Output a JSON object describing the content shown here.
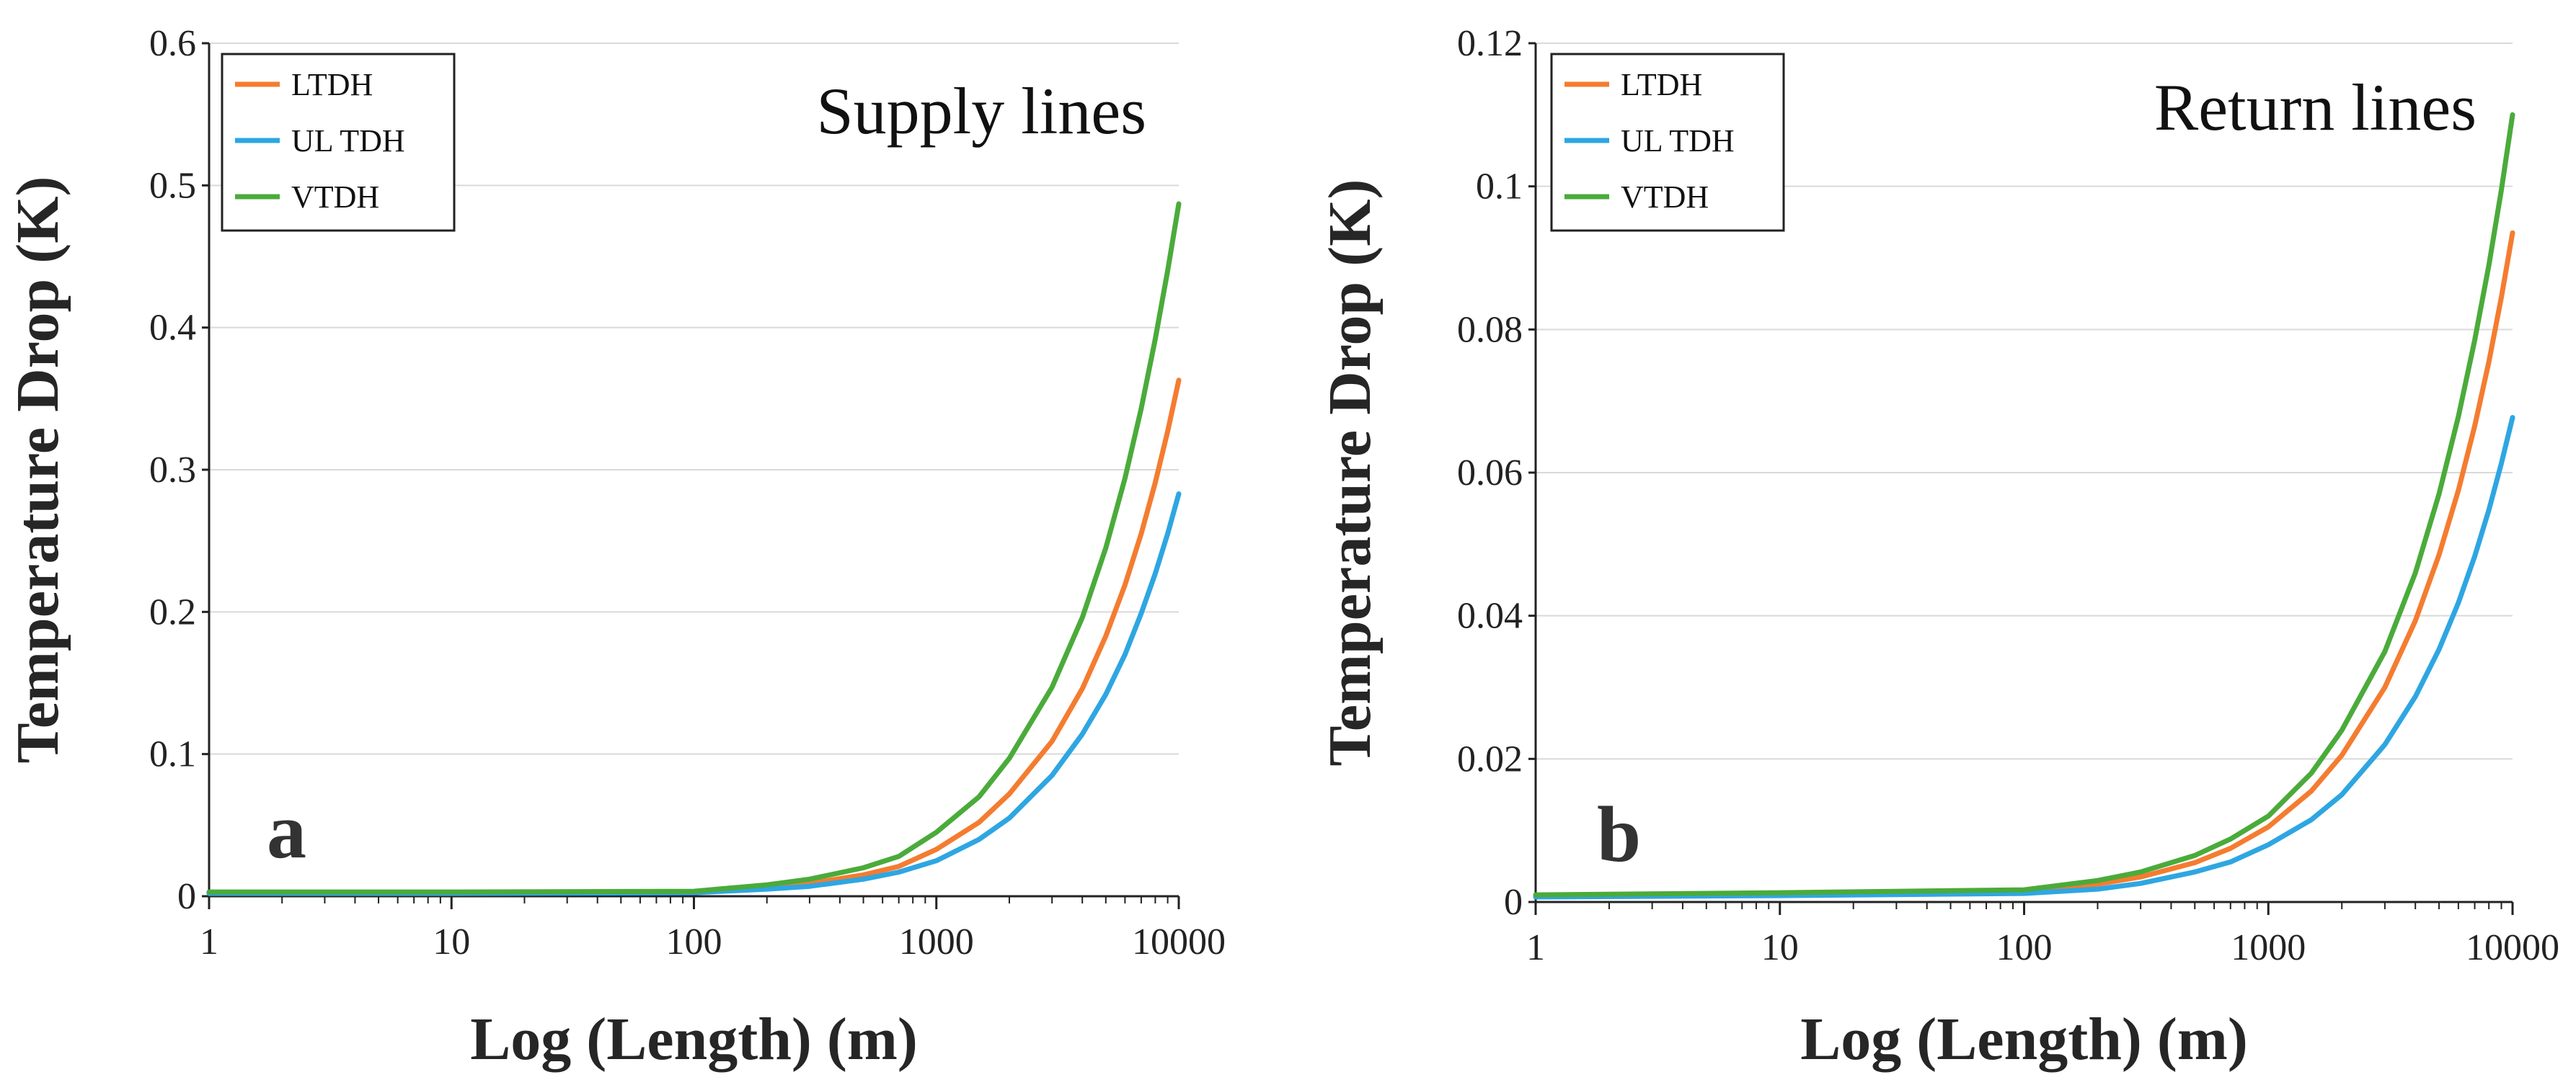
{
  "chart_data": [
    {
      "type": "line",
      "panel_label": "a",
      "title": "Supply lines",
      "xlabel": "Log (Length) (m)",
      "ylabel": "Temperature Drop (K)",
      "xscale": "log",
      "xlim": [
        1,
        10000
      ],
      "xticks": [
        1,
        10,
        100,
        1000,
        10000
      ],
      "xtick_labels": [
        "1",
        "10",
        "100",
        "1000",
        "10000"
      ],
      "ylim": [
        0,
        0.6
      ],
      "yticks": [
        0,
        0.1,
        0.2,
        0.3,
        0.4,
        0.5,
        0.6
      ],
      "ytick_labels": [
        "0",
        "0.1",
        "0.2",
        "0.3",
        "0.4",
        "0.5",
        "0.6"
      ],
      "grid": "horizontal",
      "legend_position": "top-left",
      "x": [
        1,
        10,
        100,
        200,
        300,
        500,
        700,
        1000,
        1500,
        2000,
        3000,
        4000,
        5000,
        6000,
        7000,
        8000,
        9000,
        10000
      ],
      "series": [
        {
          "name": "LTDH",
          "color": "#f47c30",
          "values": [
            0.0025,
            0.0025,
            0.003,
            0.006,
            0.009,
            0.015,
            0.021,
            0.033,
            0.052,
            0.072,
            0.109,
            0.146,
            0.183,
            0.219,
            0.255,
            0.291,
            0.327,
            0.363
          ]
        },
        {
          "name": "UL TDH",
          "color": "#2ea6e2",
          "values": [
            0.002,
            0.002,
            0.0025,
            0.005,
            0.007,
            0.012,
            0.017,
            0.025,
            0.04,
            0.055,
            0.085,
            0.114,
            0.142,
            0.17,
            0.199,
            0.227,
            0.255,
            0.283
          ]
        },
        {
          "name": "VTDH",
          "color": "#4aab3a",
          "values": [
            0.003,
            0.003,
            0.0035,
            0.008,
            0.012,
            0.02,
            0.028,
            0.045,
            0.07,
            0.097,
            0.147,
            0.196,
            0.245,
            0.294,
            0.343,
            0.392,
            0.44,
            0.487
          ]
        }
      ]
    },
    {
      "type": "line",
      "panel_label": "b",
      "title": "Return lines",
      "xlabel": "Log (Length) (m)",
      "ylabel": "Temperature Drop (K)",
      "xscale": "log",
      "xlim": [
        1,
        10000
      ],
      "xticks": [
        1,
        10,
        100,
        1000,
        10000
      ],
      "xtick_labels": [
        "1",
        "10",
        "100",
        "1000",
        "10000"
      ],
      "ylim": [
        0,
        0.12
      ],
      "yticks": [
        0,
        0.02,
        0.04,
        0.06,
        0.08,
        0.1,
        0.12
      ],
      "ytick_labels": [
        "0",
        "0.02",
        "0.04",
        "0.06",
        "0.08",
        "0.1",
        "0.12"
      ],
      "grid": "horizontal",
      "legend_position": "top-left",
      "x": [
        1,
        10,
        100,
        200,
        300,
        500,
        700,
        1000,
        1500,
        2000,
        3000,
        4000,
        5000,
        6000,
        7000,
        8000,
        9000,
        10000
      ],
      "series": [
        {
          "name": "LTDH",
          "color": "#f47c30",
          "values": [
            0.0009,
            0.0012,
            0.0015,
            0.0025,
            0.0035,
            0.0055,
            0.0075,
            0.0105,
            0.0155,
            0.0205,
            0.03,
            0.0393,
            0.0485,
            0.0575,
            0.0665,
            0.0755,
            0.0845,
            0.0935
          ]
        },
        {
          "name": "UL TDH",
          "color": "#2ea6e2",
          "values": [
            0.0007,
            0.0009,
            0.0012,
            0.0018,
            0.0026,
            0.0042,
            0.0056,
            0.008,
            0.0115,
            0.015,
            0.022,
            0.0287,
            0.0353,
            0.0418,
            0.0483,
            0.0548,
            0.0613,
            0.0677
          ]
        },
        {
          "name": "VTDH",
          "color": "#4aab3a",
          "values": [
            0.001,
            0.0013,
            0.0017,
            0.003,
            0.0042,
            0.0065,
            0.0088,
            0.012,
            0.018,
            0.024,
            0.035,
            0.046,
            0.057,
            0.0678,
            0.0785,
            0.089,
            0.0995,
            0.11
          ]
        }
      ]
    }
  ]
}
